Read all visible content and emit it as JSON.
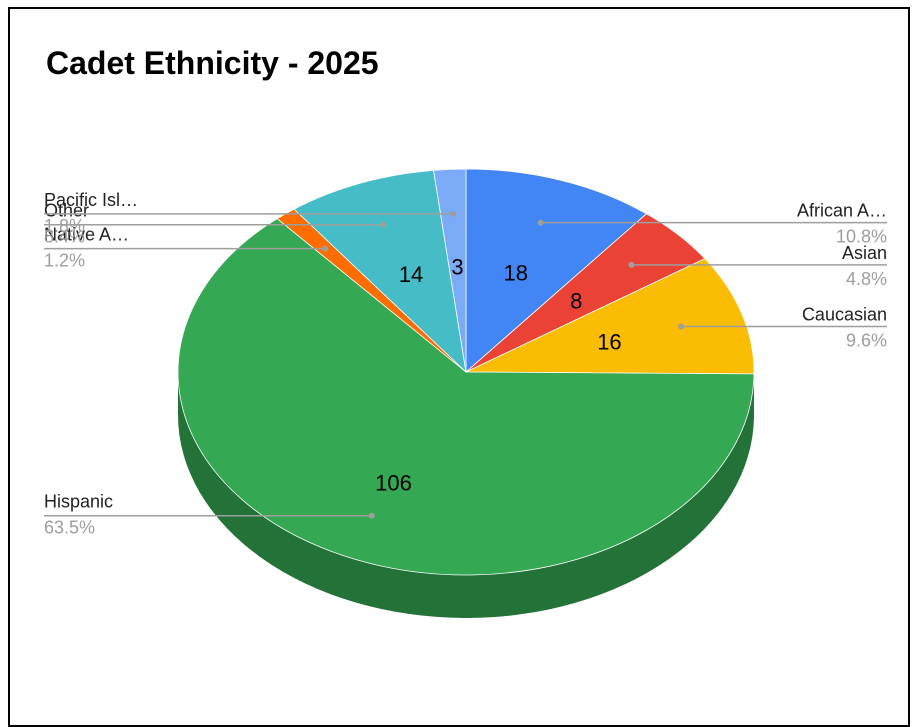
{
  "chart_data": {
    "type": "pie",
    "title": "Cadet Ethnicity - 2025",
    "slices": [
      {
        "label": "African A…",
        "value": 18,
        "percent": "10.8%",
        "color": "#4285f4"
      },
      {
        "label": "Asian",
        "value": 8,
        "percent": "4.8%",
        "color": "#ea4335"
      },
      {
        "label": "Caucasian",
        "value": 16,
        "percent": "9.6%",
        "color": "#fbbc04"
      },
      {
        "label": "Hispanic",
        "value": 106,
        "percent": "63.5%",
        "color": "#34a853"
      },
      {
        "label": "Native A…",
        "value": 2,
        "percent": "1.2%",
        "color": "#ff6d01"
      },
      {
        "label": "Other",
        "value": 14,
        "percent": "8.4%",
        "color": "#46bdc6"
      },
      {
        "label": "Pacific Isl…",
        "value": 3,
        "percent": "1.8%",
        "color": "#7baaf7"
      }
    ],
    "three_d": true,
    "legend": "labeled slices"
  }
}
